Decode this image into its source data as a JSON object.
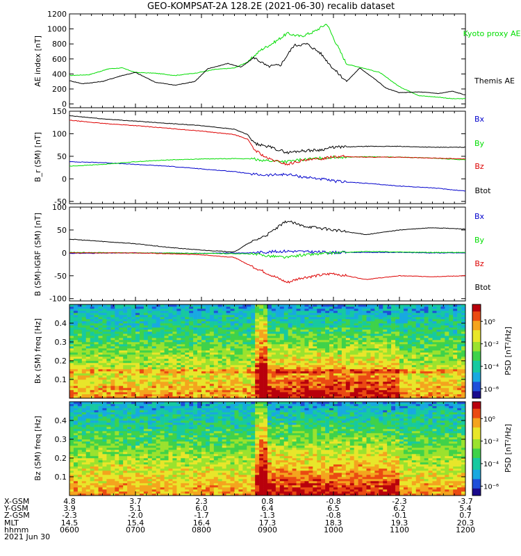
{
  "title": "GEO-KOMPSAT-2A 128.2E (2021-06-30) recalib dataset",
  "colors": {
    "black": "#000000",
    "green": "#00dd00",
    "blue": "#0000cc",
    "red": "#dd0000"
  },
  "chart_data": [
    {
      "type": "line",
      "ylabel": "AE index [nT]",
      "ylim": [
        -50,
        1200
      ],
      "yticks": [
        0,
        200,
        400,
        600,
        800,
        1000,
        1200
      ],
      "xlim": [
        6.0,
        12.0
      ],
      "legend": [
        {
          "name": "Kyoto proxy AE",
          "color": "#00dd00"
        },
        {
          "name": "Themis AE",
          "color": "#000000"
        }
      ],
      "series": [
        {
          "name": "Kyoto proxy AE",
          "color": "#00dd00",
          "x": [
            6.0,
            6.3,
            6.6,
            6.8,
            7.0,
            7.3,
            7.6,
            7.9,
            8.2,
            8.5,
            8.7,
            8.9,
            9.1,
            9.3,
            9.5,
            9.7,
            9.9,
            10.0,
            10.2,
            10.4,
            10.7,
            11.0,
            11.3,
            11.6,
            11.8,
            12.0
          ],
          "y": [
            380,
            390,
            470,
            480,
            420,
            410,
            380,
            410,
            460,
            480,
            560,
            720,
            820,
            940,
            900,
            960,
            1070,
            880,
            530,
            490,
            420,
            230,
            110,
            90,
            70,
            70
          ]
        },
        {
          "name": "Themis AE",
          "color": "#000000",
          "x": [
            6.0,
            6.2,
            6.5,
            6.8,
            7.0,
            7.3,
            7.6,
            7.9,
            8.1,
            8.4,
            8.6,
            8.8,
            9.0,
            9.2,
            9.4,
            9.6,
            9.8,
            10.0,
            10.2,
            10.4,
            10.6,
            10.8,
            11.0,
            11.3,
            11.6,
            11.8,
            12.0
          ],
          "y": [
            310,
            270,
            300,
            380,
            420,
            290,
            250,
            300,
            470,
            540,
            490,
            620,
            500,
            520,
            780,
            800,
            680,
            470,
            300,
            480,
            350,
            210,
            150,
            160,
            140,
            170,
            120
          ]
        }
      ]
    },
    {
      "type": "line",
      "ylabel": "B_r (SM) [nT]",
      "ylim": [
        -55,
        150
      ],
      "yticks": [
        -50,
        0,
        50,
        100,
        150
      ],
      "xlim": [
        6.0,
        12.0
      ],
      "legend": [
        {
          "name": "Bx",
          "color": "#0000cc"
        },
        {
          "name": "By",
          "color": "#00dd00"
        },
        {
          "name": "Bz",
          "color": "#dd0000"
        },
        {
          "name": "Btot",
          "color": "#000000"
        }
      ],
      "series": [
        {
          "name": "Bx",
          "color": "#0000cc",
          "x": [
            6.0,
            6.5,
            7.0,
            7.5,
            8.0,
            8.5,
            8.8,
            9.0,
            9.3,
            9.5,
            9.8,
            10.0,
            10.5,
            11.0,
            11.5,
            12.0
          ],
          "y": [
            38,
            36,
            32,
            28,
            22,
            16,
            10,
            8,
            10,
            5,
            0,
            -5,
            -10,
            -16,
            -20,
            -27
          ]
        },
        {
          "name": "By",
          "color": "#00dd00",
          "x": [
            6.0,
            6.5,
            7.0,
            7.5,
            8.0,
            8.5,
            8.8,
            9.0,
            9.3,
            9.5,
            9.8,
            10.0,
            10.5,
            11.0,
            11.5,
            12.0
          ],
          "y": [
            28,
            32,
            38,
            42,
            44,
            45,
            44,
            40,
            38,
            42,
            46,
            48,
            49,
            48,
            46,
            42
          ]
        },
        {
          "name": "Bz",
          "color": "#dd0000",
          "x": [
            6.0,
            6.5,
            7.0,
            7.5,
            8.0,
            8.5,
            8.7,
            8.8,
            9.0,
            9.3,
            9.5,
            9.8,
            10.0,
            10.5,
            11.0,
            11.5,
            12.0
          ],
          "y": [
            130,
            123,
            118,
            112,
            106,
            98,
            88,
            65,
            45,
            32,
            40,
            44,
            50,
            48,
            48,
            46,
            44
          ]
        },
        {
          "name": "Btot",
          "color": "#000000",
          "x": [
            6.0,
            6.5,
            7.0,
            7.5,
            8.0,
            8.5,
            8.7,
            8.8,
            9.0,
            9.3,
            9.5,
            9.8,
            10.0,
            10.5,
            11.0,
            11.5,
            12.0
          ],
          "y": [
            140,
            133,
            128,
            123,
            118,
            110,
            98,
            78,
            72,
            58,
            62,
            64,
            70,
            72,
            72,
            70,
            70
          ]
        }
      ]
    },
    {
      "type": "line",
      "ylabel": "B (SM)-IGRF (SM) [nT]",
      "ylim": [
        -105,
        100
      ],
      "yticks": [
        -100,
        -50,
        0,
        50,
        100
      ],
      "xlim": [
        6.0,
        12.0
      ],
      "legend": [
        {
          "name": "Bx",
          "color": "#0000cc"
        },
        {
          "name": "By",
          "color": "#00dd00"
        },
        {
          "name": "Bz",
          "color": "#dd0000"
        },
        {
          "name": "Btot",
          "color": "#000000"
        }
      ],
      "series": [
        {
          "name": "Bx",
          "color": "#0000cc",
          "x": [
            6.0,
            7.0,
            8.0,
            8.7,
            9.0,
            9.3,
            9.5,
            10.0,
            10.5,
            11.0,
            11.5,
            12.0
          ],
          "y": [
            -1,
            0,
            -1,
            0,
            2,
            4,
            3,
            1,
            1,
            1,
            0,
            0
          ]
        },
        {
          "name": "By",
          "color": "#00dd00",
          "x": [
            6.0,
            7.0,
            8.0,
            8.7,
            9.0,
            9.3,
            9.5,
            10.0,
            10.5,
            11.0,
            11.5,
            12.0
          ],
          "y": [
            1,
            0,
            -1,
            -2,
            -6,
            -10,
            -5,
            0,
            3,
            2,
            1,
            1
          ]
        },
        {
          "name": "Bz",
          "color": "#dd0000",
          "x": [
            6.0,
            7.0,
            7.5,
            8.0,
            8.5,
            8.7,
            9.0,
            9.3,
            9.5,
            10.0,
            10.5,
            11.0,
            11.5,
            12.0
          ],
          "y": [
            0,
            0,
            -2,
            -4,
            -10,
            -25,
            -45,
            -65,
            -55,
            -45,
            -58,
            -50,
            -52,
            -50
          ]
        },
        {
          "name": "Btot",
          "color": "#000000",
          "x": [
            6.0,
            6.5,
            7.0,
            7.5,
            8.0,
            8.5,
            8.7,
            9.0,
            9.3,
            9.5,
            10.0,
            10.5,
            11.0,
            11.5,
            12.0
          ],
          "y": [
            30,
            25,
            20,
            12,
            6,
            2,
            20,
            40,
            70,
            60,
            50,
            40,
            50,
            55,
            52
          ]
        }
      ]
    },
    {
      "type": "heatmap",
      "ylabel": "Bx (SM) freq [Hz]",
      "ylim": [
        0,
        0.5
      ],
      "yticks": [
        0.1,
        0.2,
        0.3,
        0.4
      ],
      "colorbar_label": "PSD [nT²/Hz]",
      "colorbar_ticks": [
        "10⁰",
        "10⁻²",
        "10⁻⁴",
        "10⁻⁶"
      ]
    },
    {
      "type": "heatmap",
      "ylabel": "Bz (SM) freq [Hz]",
      "ylim": [
        0,
        0.5
      ],
      "yticks": [
        0.1,
        0.2,
        0.3,
        0.4
      ],
      "colorbar_label": "PSD [nT²/Hz]",
      "colorbar_ticks": [
        "10⁰",
        "10⁻²",
        "10⁻⁴",
        "10⁻⁶"
      ]
    }
  ],
  "xaxis": {
    "rows": [
      {
        "label": "X-GSM",
        "values": [
          "4.8",
          "3.7",
          "2.3",
          "0.8",
          "-0.8",
          "-2.3",
          "-3.7"
        ]
      },
      {
        "label": "Y-GSM",
        "values": [
          "3.9",
          "5.1",
          "6.0",
          "6.4",
          "6.5",
          "6.2",
          "5.4"
        ]
      },
      {
        "label": "Z-GSM",
        "values": [
          "-2.3",
          "-2.0",
          "-1.7",
          "-1.3",
          "-0.8",
          "-0.1",
          "0.7"
        ]
      },
      {
        "label": "MLT",
        "values": [
          "14.5",
          "15.4",
          "16.4",
          "17.3",
          "18.3",
          "19.3",
          "20.3"
        ]
      },
      {
        "label": "hhmm",
        "values": [
          "0600",
          "0700",
          "0800",
          "0900",
          "1000",
          "1100",
          "1200"
        ]
      }
    ],
    "date": "2021 Jun 30"
  }
}
